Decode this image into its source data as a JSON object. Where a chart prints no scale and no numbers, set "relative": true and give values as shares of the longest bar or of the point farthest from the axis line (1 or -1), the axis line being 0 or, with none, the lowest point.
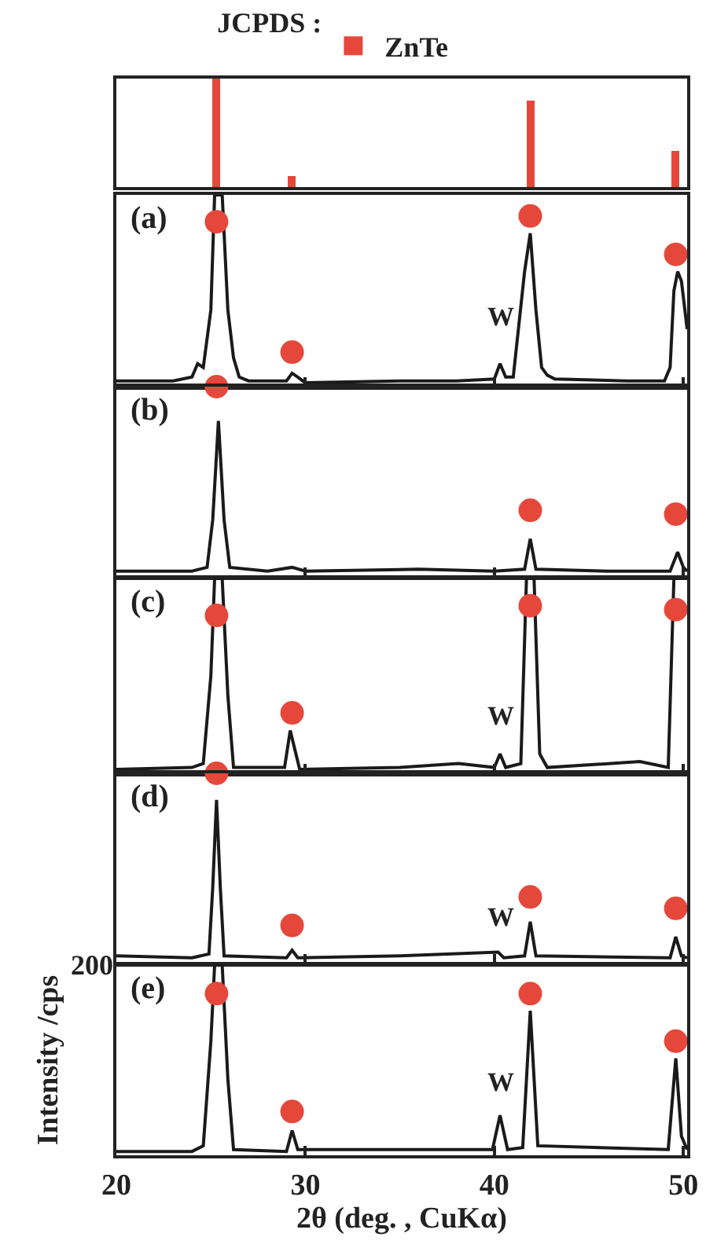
{
  "chart_data": [
    {
      "type": "bar",
      "title": "JCPDS :",
      "x": [
        25.3,
        29.3,
        41.9,
        49.6
      ],
      "relative": true,
      "xlim": [
        20,
        50.2
      ],
      "legend": "top",
      "tick_labels": false,
      "series": [
        {
          "name": "ZnTe",
          "color": "#e5483b",
          "values": [
            1,
            0.1,
            0.8,
            0.33
          ]
        }
      ]
    },
    {
      "type": "line",
      "relative": true,
      "xlim": [
        20,
        50.2
      ],
      "xticks": [
        {
          "value": 20,
          "label": null
        },
        {
          "value": 30,
          "label": null
        },
        {
          "value": 40,
          "label": null
        },
        {
          "value": 50,
          "label": null
        }
      ],
      "tick_labels": false,
      "annotations": [
        "(a)",
        "W"
      ],
      "series": [
        {
          "color": "#1a1a1a",
          "x": [
            20,
            23,
            24,
            24.3,
            24.6,
            25,
            25.2,
            25.6,
            25.9,
            26.2,
            26.5,
            27,
            29,
            29.3,
            29.6,
            30,
            35,
            38,
            40,
            40.3,
            40.6,
            41,
            41.6,
            41.9,
            42.2,
            42.5,
            42.8,
            43.2,
            47,
            49,
            49.3,
            49.5,
            49.7,
            49.9,
            50.2
          ],
          "values": [
            0.03,
            0.03,
            0.05,
            0.12,
            0.1,
            0.4,
            1,
            1,
            0.4,
            0.15,
            0.05,
            0.03,
            0.03,
            0.07,
            0.05,
            0.02,
            0.03,
            0.03,
            0.04,
            0.12,
            0.05,
            0.05,
            0.6,
            0.8,
            0.4,
            0.1,
            0.06,
            0.04,
            0.03,
            0.03,
            0.1,
            0.5,
            0.6,
            0.55,
            0.3
          ]
        },
        {
          "type": "scatter",
          "marker": "circle",
          "color": "#e5483b",
          "x": [
            25.3,
            29.3,
            41.9,
            49.6
          ],
          "values": [
            0.86,
            0.18,
            0.89,
            0.69
          ]
        }
      ]
    },
    {
      "type": "line",
      "relative": true,
      "xlim": [
        20,
        50.2
      ],
      "xticks": [
        {
          "value": 20,
          "label": null
        },
        {
          "value": 30,
          "label": null
        },
        {
          "value": 40,
          "label": null
        },
        {
          "value": 50,
          "label": null
        }
      ],
      "tick_labels": false,
      "annotations": [
        "(b)"
      ],
      "series": [
        {
          "color": "#1a1a1a",
          "x": [
            20,
            24,
            24.8,
            25.1,
            25.4,
            25.7,
            26,
            28,
            29.3,
            30,
            36,
            40,
            41.6,
            41.9,
            42.2,
            46,
            49.3,
            49.7,
            50,
            50.2
          ],
          "values": [
            0.03,
            0.03,
            0.05,
            0.3,
            0.82,
            0.3,
            0.05,
            0.03,
            0.05,
            0.03,
            0.04,
            0.03,
            0.04,
            0.2,
            0.04,
            0.03,
            0.03,
            0.13,
            0.05,
            0.03
          ]
        },
        {
          "type": "scatter",
          "marker": "circle",
          "color": "#e5483b",
          "x": [
            25.3,
            41.9,
            49.6
          ],
          "values": [
            1,
            0.35,
            0.33
          ]
        }
      ]
    },
    {
      "type": "line",
      "relative": true,
      "xlim": [
        20,
        50.2
      ],
      "xticks": [
        {
          "value": 20,
          "label": null
        },
        {
          "value": 30,
          "label": null
        },
        {
          "value": 40,
          "label": null
        },
        {
          "value": 50,
          "label": null
        }
      ],
      "tick_labels": false,
      "annotations": [
        "(c)",
        "W"
      ],
      "series": [
        {
          "color": "#1a1a1a",
          "x": [
            20,
            24,
            24.6,
            25,
            25.2,
            25.6,
            25.9,
            26.2,
            28.9,
            29.2,
            29.5,
            29.7,
            35,
            38.1,
            40,
            40.3,
            40.6,
            41.4,
            41.7,
            42.1,
            42.4,
            42.8,
            47.7,
            49.2,
            49.5,
            50.2
          ],
          "values": [
            0.02,
            0.03,
            0.05,
            0.5,
            1,
            1,
            0.4,
            0.03,
            0.03,
            0.22,
            0.1,
            0.02,
            0.03,
            0.05,
            0.03,
            0.1,
            0.03,
            0.05,
            1,
            1,
            0.1,
            0.03,
            0.06,
            0.03,
            1,
            1
          ]
        },
        {
          "type": "scatter",
          "marker": "circle",
          "color": "#e5483b",
          "x": [
            25.3,
            29.3,
            41.9,
            49.6
          ],
          "values": [
            0.81,
            0.31,
            0.86,
            0.84
          ]
        }
      ]
    },
    {
      "type": "line",
      "relative": true,
      "xlim": [
        20,
        50.2
      ],
      "xticks": [
        {
          "value": 20,
          "label": null
        },
        {
          "value": 30,
          "label": null
        },
        {
          "value": 40,
          "label": null
        },
        {
          "value": 50,
          "label": null
        }
      ],
      "tick_labels": false,
      "annotations": [
        "(d)",
        "W"
      ],
      "series": [
        {
          "color": "#1a1a1a",
          "x": [
            20,
            24,
            24.9,
            25.1,
            25.3,
            25.5,
            25.7,
            29,
            29.3,
            29.6,
            35,
            40.2,
            40.5,
            41.6,
            41.9,
            42.2,
            49.3,
            49.6,
            49.9,
            50.2
          ],
          "values": [
            0.04,
            0.03,
            0.05,
            0.4,
            0.86,
            0.4,
            0.04,
            0.03,
            0.07,
            0.03,
            0.04,
            0.06,
            0.03,
            0.04,
            0.22,
            0.04,
            0.03,
            0.14,
            0.04,
            0.03
          ]
        },
        {
          "type": "scatter",
          "marker": "circle",
          "color": "#e5483b",
          "x": [
            25.3,
            29.3,
            41.9,
            49.6
          ],
          "values": [
            1,
            0.2,
            0.35,
            0.29
          ]
        }
      ]
    },
    {
      "type": "line",
      "relative": true,
      "xlim": [
        20,
        50.2
      ],
      "xticks": [
        20,
        30,
        40,
        50
      ],
      "tick_labels": "x",
      "xlabel": "2θ (deg. , CuKα)",
      "ylabel": "Intensity /cps",
      "annotations": [
        "(e)",
        "W",
        "200"
      ],
      "series": [
        {
          "color": "#1a1a1a",
          "x": [
            20,
            24,
            24.6,
            25,
            25.2,
            25.6,
            25.9,
            26.2,
            29,
            29.3,
            29.6,
            35,
            39.9,
            40.3,
            40.7,
            41.5,
            41.9,
            42.3,
            49.2,
            49.6,
            49.9,
            50.2
          ],
          "values": [
            0.02,
            0.02,
            0.05,
            0.6,
            1,
            1,
            0.4,
            0.03,
            0.02,
            0.13,
            0.03,
            0.03,
            0.03,
            0.21,
            0.03,
            0.04,
            0.76,
            0.05,
            0.03,
            0.51,
            0.1,
            0.03
          ]
        },
        {
          "type": "scatter",
          "marker": "circle",
          "color": "#e5483b",
          "x": [
            25.3,
            29.3,
            41.9,
            49.6
          ],
          "values": [
            0.85,
            0.23,
            0.85,
            0.6
          ]
        }
      ]
    }
  ]
}
